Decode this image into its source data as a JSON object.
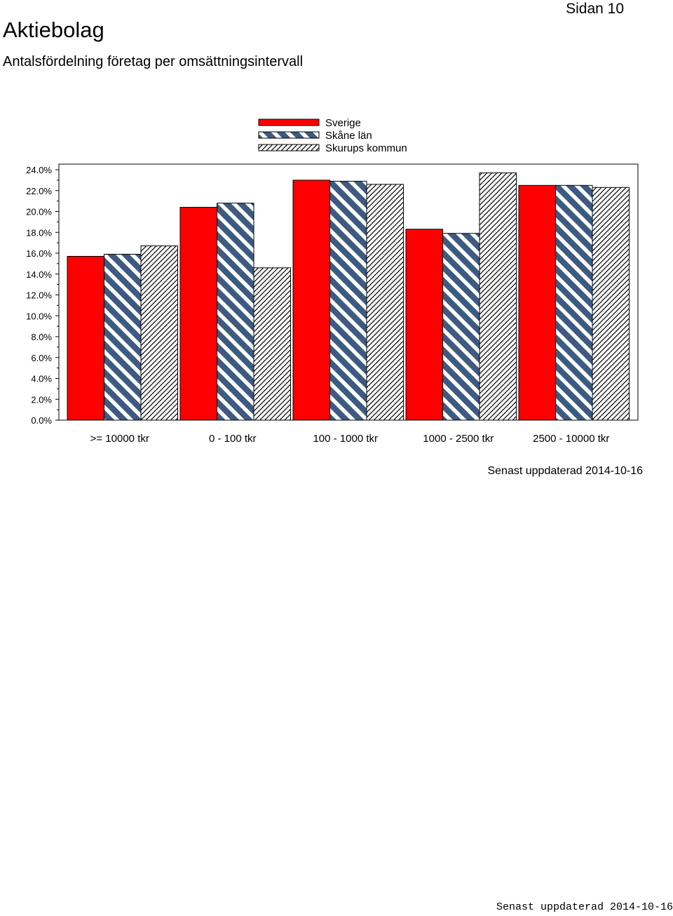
{
  "header": {
    "title": "Aktiebolag",
    "subtitle": "Antalsfördelning företag per omsättningsintervall",
    "page_label": "Sidan 10"
  },
  "footer": {
    "updated_text": "Senast uppdaterad 2014-10-16",
    "bottom_note": "Senast uppdaterad 2014-10-16"
  },
  "chart_data": {
    "type": "bar",
    "title": "",
    "xlabel": "",
    "ylabel": "",
    "ylim": [
      0,
      24
    ],
    "yticks": [
      0,
      2,
      4,
      6,
      8,
      10,
      12,
      14,
      16,
      18,
      20,
      22,
      24
    ],
    "ytick_labels": [
      "0.0%",
      "2.0%",
      "4.0%",
      "6.0%",
      "8.0%",
      "10.0%",
      "12.0%",
      "14.0%",
      "16.0%",
      "18.0%",
      "20.0%",
      "22.0%",
      "24.0%"
    ],
    "grid": false,
    "legend_position": "top",
    "categories": [
      ">= 10000 tkr",
      "0 - 100 tkr",
      "100 - 1000 tkr",
      "1000 - 2500 tkr",
      "2500 - 10000 tkr"
    ],
    "series": [
      {
        "name": "Sverige",
        "values": [
          15.7,
          20.4,
          23.0,
          18.3,
          22.5
        ],
        "color": "#ff0000",
        "pattern": "solid"
      },
      {
        "name": "Skåne län",
        "values": [
          15.9,
          20.8,
          22.9,
          17.9,
          22.5
        ],
        "color": "#3d5a80",
        "pattern": "diagonal-stripes"
      },
      {
        "name": "Skurups kommun",
        "values": [
          16.7,
          14.6,
          22.6,
          23.7,
          22.3
        ],
        "color": "#000000",
        "pattern": "fine-hatch"
      }
    ]
  }
}
